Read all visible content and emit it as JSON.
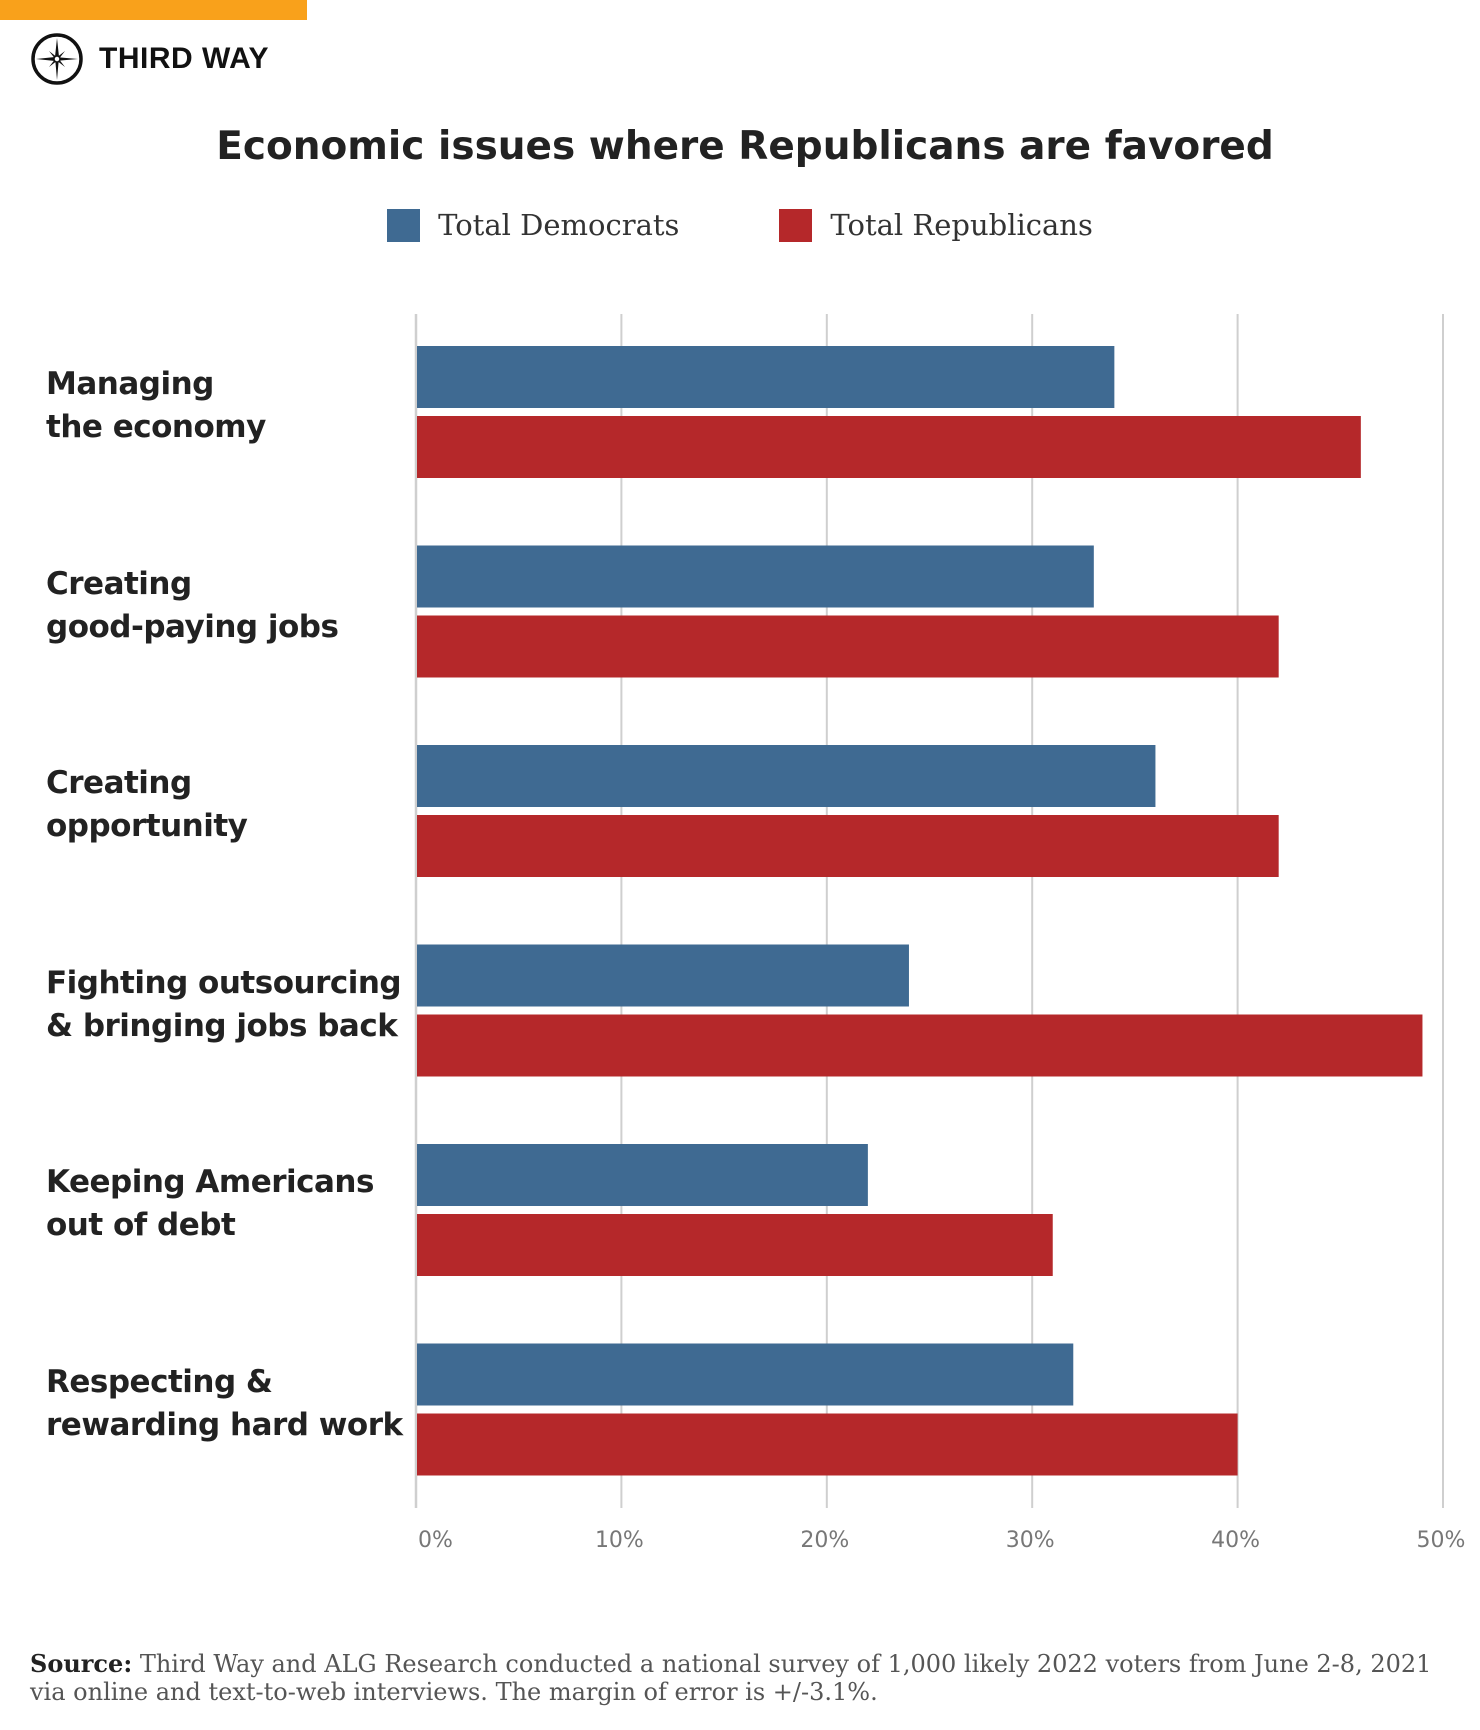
{
  "brand": {
    "name": "THIRD WAY",
    "accent_color": "#f9a11b"
  },
  "chart_data": {
    "type": "bar",
    "orientation": "horizontal",
    "title": "Economic issues where Republicans are favored",
    "categories": [
      "Managing\nthe economy",
      "Creating\ngood-paying jobs",
      "Creating\nopportunity",
      "Fighting outsourcing\n& bringing jobs back",
      "Keeping Americans\nout of debt",
      "Respecting &\nrewarding hard work"
    ],
    "series": [
      {
        "name": "Total Democrats",
        "color": "#3f6a92",
        "values": [
          34,
          33,
          36,
          24,
          22,
          32
        ]
      },
      {
        "name": "Total Republicans",
        "color": "#b5282a",
        "values": [
          46,
          42,
          42,
          49,
          31,
          40
        ]
      }
    ],
    "xlim": [
      0,
      50
    ],
    "x_ticks": [
      "0%",
      "10%",
      "20%",
      "30%",
      "40%",
      "50%"
    ],
    "grid": true,
    "legend_position": "top"
  },
  "source": {
    "label": "Source:",
    "text": " Third Way and ALG Research conducted a national survey of 1,000 likely 2022 voters from June 2-8, 2021 via online and text-to-web interviews. The margin of error is +/-3.1%."
  }
}
